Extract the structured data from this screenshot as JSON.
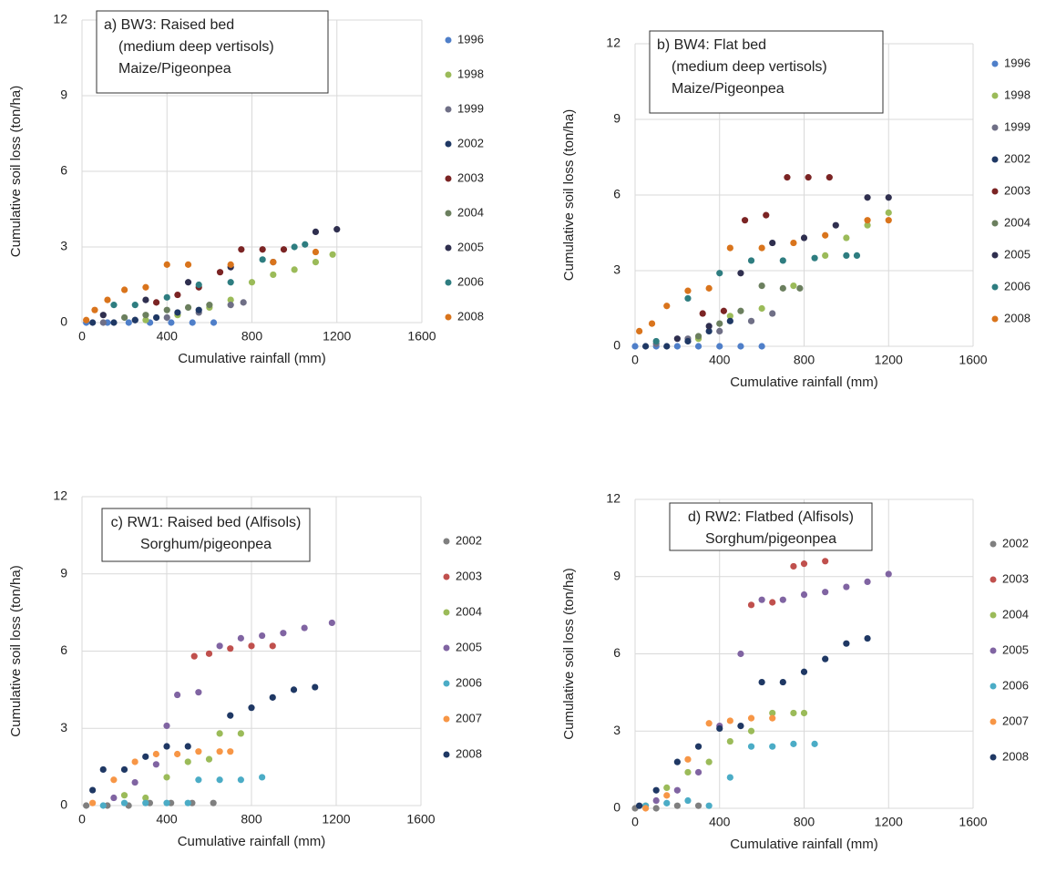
{
  "chart_data": [
    {
      "type": "scatter",
      "annotation": [
        "a) BW3: Raised bed",
        "(medium deep vertisols)",
        "Maize/Pigeonpea"
      ],
      "xlabel": "Cumulative rainfall (mm)",
      "ylabel": "Cumulative soil loss (ton/ha)",
      "xlim": [
        0,
        1600
      ],
      "ylim": [
        0,
        12
      ],
      "xticks": [
        0,
        400,
        800,
        1200,
        1600
      ],
      "yticks": [
        0,
        3,
        6,
        9,
        12
      ],
      "grid": true,
      "series": [
        {
          "name": "1996",
          "color": "#4f7fc9",
          "x": [
            20,
            120,
            220,
            320,
            420,
            520,
            620
          ],
          "values": [
            0,
            0,
            0,
            0,
            0,
            0,
            0
          ]
        },
        {
          "name": "1998",
          "color": "#9bbb59",
          "x": [
            300,
            450,
            600,
            700,
            800,
            900,
            1000,
            1100,
            1180
          ],
          "values": [
            0.1,
            0.3,
            0.6,
            0.9,
            1.6,
            1.9,
            2.1,
            2.4,
            2.7
          ]
        },
        {
          "name": "1999",
          "color": "#6f6f86",
          "x": [
            100,
            250,
            400,
            550,
            700,
            760
          ],
          "values": [
            0,
            0.1,
            0.2,
            0.4,
            0.7,
            0.8
          ]
        },
        {
          "name": "2002",
          "color": "#1f3864",
          "x": [
            50,
            150,
            250,
            350,
            450,
            550
          ],
          "values": [
            0,
            0,
            0.1,
            0.2,
            0.4,
            0.5
          ]
        },
        {
          "name": "2003",
          "color": "#7b2424",
          "x": [
            350,
            450,
            550,
            650,
            750,
            850,
            950
          ],
          "values": [
            0.8,
            1.1,
            1.4,
            2.0,
            2.9,
            2.9,
            2.9
          ]
        },
        {
          "name": "2004",
          "color": "#6b7f5e",
          "x": [
            200,
            300,
            400,
            500,
            600
          ],
          "values": [
            0.2,
            0.3,
            0.5,
            0.6,
            0.7
          ]
        },
        {
          "name": "2005",
          "color": "#2f2f4f",
          "x": [
            100,
            300,
            500,
            700,
            900,
            1100,
            1200
          ],
          "values": [
            0.3,
            0.9,
            1.6,
            2.2,
            2.4,
            3.6,
            3.7
          ]
        },
        {
          "name": "2006",
          "color": "#2e7d80",
          "x": [
            150,
            250,
            400,
            550,
            700,
            850,
            1000,
            1050
          ],
          "values": [
            0.7,
            0.7,
            1.0,
            1.5,
            1.6,
            2.5,
            3.0,
            3.1
          ]
        },
        {
          "name": "2008",
          "color": "#d9741c",
          "x": [
            20,
            60,
            120,
            200,
            300,
            400,
            500,
            700,
            900,
            1100
          ],
          "values": [
            0.1,
            0.5,
            0.9,
            1.3,
            1.4,
            2.3,
            2.3,
            2.3,
            2.4,
            2.8
          ]
        }
      ]
    },
    {
      "type": "scatter",
      "annotation": [
        "b) BW4: Flat bed",
        "(medium deep vertisols)",
        "Maize/Pigeonpea"
      ],
      "xlabel": "Cumulative rainfall (mm)",
      "ylabel": "Cumulative soil loss (ton/ha)",
      "xlim": [
        0,
        1600
      ],
      "ylim": [
        0,
        12
      ],
      "xticks": [
        0,
        400,
        800,
        1200,
        1600
      ],
      "yticks": [
        0,
        3,
        6,
        9,
        12
      ],
      "grid": true,
      "series": [
        {
          "name": "1996",
          "color": "#4f7fc9",
          "x": [
            0,
            100,
            200,
            300,
            400,
            500,
            600
          ],
          "values": [
            0,
            0,
            0,
            0,
            0,
            0,
            0
          ]
        },
        {
          "name": "1998",
          "color": "#9bbb59",
          "x": [
            300,
            450,
            600,
            750,
            900,
            1000,
            1100,
            1200
          ],
          "values": [
            0.3,
            1.2,
            1.5,
            2.4,
            3.6,
            4.3,
            4.8,
            5.3
          ]
        },
        {
          "name": "1999",
          "color": "#6f6f86",
          "x": [
            100,
            250,
            400,
            550,
            650
          ],
          "values": [
            0.1,
            0.3,
            0.6,
            1.0,
            1.3
          ]
        },
        {
          "name": "2002",
          "color": "#1f3864",
          "x": [
            50,
            150,
            250,
            350,
            450
          ],
          "values": [
            0,
            0,
            0.2,
            0.6,
            1.0
          ]
        },
        {
          "name": "2003",
          "color": "#7b2424",
          "x": [
            320,
            420,
            520,
            620,
            720,
            820,
            920
          ],
          "values": [
            1.3,
            1.4,
            5.0,
            5.2,
            6.7,
            6.7,
            6.7
          ]
        },
        {
          "name": "2004",
          "color": "#6b7f5e",
          "x": [
            300,
            400,
            500,
            600,
            700,
            780
          ],
          "values": [
            0.4,
            0.9,
            1.4,
            2.4,
            2.3,
            2.3
          ]
        },
        {
          "name": "2005",
          "color": "#2f2f4f",
          "x": [
            200,
            350,
            500,
            650,
            800,
            950,
            1100,
            1200
          ],
          "values": [
            0.3,
            0.8,
            2.9,
            4.1,
            4.3,
            4.8,
            5.9,
            5.9
          ]
        },
        {
          "name": "2006",
          "color": "#2e7d80",
          "x": [
            100,
            250,
            400,
            550,
            700,
            850,
            1000,
            1050
          ],
          "values": [
            0.2,
            1.9,
            2.9,
            3.4,
            3.4,
            3.5,
            3.6,
            3.6
          ]
        },
        {
          "name": "2008",
          "color": "#d9741c",
          "x": [
            20,
            80,
            150,
            250,
            350,
            450,
            600,
            750,
            900,
            1100,
            1200
          ],
          "values": [
            0.6,
            0.9,
            1.6,
            2.2,
            2.3,
            3.9,
            3.9,
            4.1,
            4.4,
            5.0,
            5.0
          ]
        }
      ]
    },
    {
      "type": "scatter",
      "annotation": [
        "c) RW1: Raised bed (Alfisols)",
        "Sorghum/pigeonpea"
      ],
      "xlabel": "Cumulative rainfall (mm)",
      "ylabel": "Cumulative soil loss (ton/ha)",
      "xlim": [
        0,
        1600
      ],
      "ylim": [
        0,
        12
      ],
      "xticks": [
        0,
        400,
        800,
        1200,
        1600
      ],
      "yticks": [
        0,
        3,
        6,
        9,
        12
      ],
      "grid": true,
      "series": [
        {
          "name": "2002",
          "color": "#7f7f7f",
          "x": [
            20,
            120,
            220,
            320,
            420,
            520,
            620
          ],
          "values": [
            0,
            0,
            0,
            0.1,
            0.1,
            0.1,
            0.1
          ]
        },
        {
          "name": "2003",
          "color": "#c0504d",
          "x": [
            530,
            600,
            700,
            800,
            900
          ],
          "values": [
            5.8,
            5.9,
            6.1,
            6.2,
            6.2
          ]
        },
        {
          "name": "2004",
          "color": "#9bbb59",
          "x": [
            200,
            300,
            400,
            500,
            600,
            650,
            750
          ],
          "values": [
            0.4,
            0.3,
            1.1,
            1.7,
            1.8,
            2.8,
            2.8
          ]
        },
        {
          "name": "2005",
          "color": "#8064a2",
          "x": [
            150,
            250,
            350,
            400,
            450,
            550,
            650,
            750,
            850,
            950,
            1050,
            1180
          ],
          "values": [
            0.3,
            0.9,
            1.6,
            3.1,
            4.3,
            4.4,
            6.2,
            6.5,
            6.6,
            6.7,
            6.9,
            7.1
          ]
        },
        {
          "name": "2006",
          "color": "#4bacc6",
          "x": [
            100,
            200,
            300,
            400,
            500,
            550,
            650,
            750,
            850
          ],
          "values": [
            0,
            0.1,
            0.1,
            0.1,
            0.1,
            1.0,
            1.0,
            1.0,
            1.1
          ]
        },
        {
          "name": "2007",
          "color": "#f79646",
          "x": [
            50,
            150,
            250,
            350,
            450,
            550,
            650,
            700
          ],
          "values": [
            0.1,
            1.0,
            1.7,
            2.0,
            2.0,
            2.1,
            2.1,
            2.1
          ]
        },
        {
          "name": "2008",
          "color": "#1f3864",
          "x": [
            50,
            100,
            200,
            300,
            400,
            500,
            700,
            800,
            900,
            1000,
            1100
          ],
          "values": [
            0.6,
            1.4,
            1.4,
            1.9,
            2.3,
            2.3,
            3.5,
            3.8,
            4.2,
            4.5,
            4.6
          ]
        }
      ]
    },
    {
      "type": "scatter",
      "annotation": [
        "d) RW2: Flatbed (Alfisols)",
        "Sorghum/pigeonpea"
      ],
      "xlabel": "Cumulative rainfall (mm)",
      "ylabel": "Cumulative soil loss (ton/ha)",
      "xlim": [
        0,
        1600
      ],
      "ylim": [
        0,
        12
      ],
      "xticks": [
        0,
        400,
        800,
        1200,
        1600
      ],
      "yticks": [
        0,
        3,
        6,
        9,
        12
      ],
      "grid": true,
      "series": [
        {
          "name": "2002",
          "color": "#7f7f7f",
          "x": [
            0,
            100,
            200,
            300
          ],
          "values": [
            0,
            0,
            0.1,
            0.1
          ]
        },
        {
          "name": "2003",
          "color": "#c0504d",
          "x": [
            550,
            650,
            750,
            800,
            900
          ],
          "values": [
            7.9,
            8.0,
            9.4,
            9.5,
            9.6
          ]
        },
        {
          "name": "2004",
          "color": "#9bbb59",
          "x": [
            50,
            150,
            250,
            350,
            450,
            550,
            650,
            750,
            800
          ],
          "values": [
            0.1,
            0.8,
            1.4,
            1.8,
            2.6,
            3.0,
            3.7,
            3.7,
            3.7
          ]
        },
        {
          "name": "2005",
          "color": "#8064a2",
          "x": [
            100,
            200,
            300,
            400,
            500,
            600,
            700,
            800,
            900,
            1000,
            1100,
            1200
          ],
          "values": [
            0.3,
            0.7,
            1.4,
            3.2,
            6.0,
            8.1,
            8.1,
            8.3,
            8.4,
            8.6,
            8.8,
            9.1
          ]
        },
        {
          "name": "2006",
          "color": "#4bacc6",
          "x": [
            50,
            150,
            250,
            350,
            450,
            550,
            650,
            750,
            850
          ],
          "values": [
            0.1,
            0.2,
            0.3,
            0.1,
            1.2,
            2.4,
            2.4,
            2.5,
            2.5
          ]
        },
        {
          "name": "2007",
          "color": "#f79646",
          "x": [
            50,
            150,
            250,
            350,
            450,
            550,
            650
          ],
          "values": [
            0,
            0.5,
            1.9,
            3.3,
            3.4,
            3.5,
            3.5
          ]
        },
        {
          "name": "2008",
          "color": "#1f3864",
          "x": [
            20,
            100,
            200,
            300,
            400,
            500,
            600,
            700,
            800,
            900,
            1000,
            1100
          ],
          "values": [
            0.1,
            0.7,
            1.8,
            2.4,
            3.1,
            3.2,
            4.9,
            4.9,
            5.3,
            5.8,
            6.4,
            6.6
          ]
        }
      ]
    }
  ]
}
